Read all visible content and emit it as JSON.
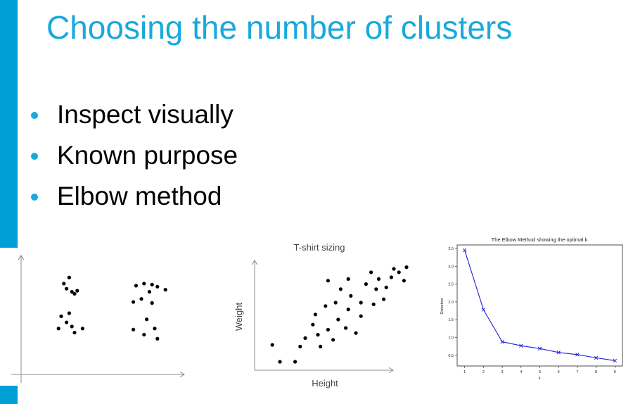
{
  "slide": {
    "title": "Choosing the number of clusters",
    "bullets": [
      "Inspect visually",
      "Known purpose",
      "Elbow method"
    ]
  },
  "colors": {
    "accent": "#009fd6",
    "title": "#19a9dc",
    "bullet": "#19a9dc",
    "axis": "#8c8c8c",
    "elbow_line": "#1f1fd9"
  },
  "chart_data": [
    {
      "type": "scatter",
      "title": "",
      "xlabel": "",
      "ylabel": "",
      "grid": false,
      "points": [
        [
          1.6,
          8.9
        ],
        [
          1.8,
          9.5
        ],
        [
          1.9,
          8.1
        ],
        [
          1.7,
          8.4
        ],
        [
          2.0,
          7.9
        ],
        [
          2.1,
          8.2
        ],
        [
          1.5,
          5.7
        ],
        [
          1.7,
          5.1
        ],
        [
          1.8,
          6.0
        ],
        [
          1.4,
          4.5
        ],
        [
          1.9,
          4.7
        ],
        [
          2.0,
          4.1
        ],
        [
          2.3,
          4.5
        ],
        [
          4.3,
          8.7
        ],
        [
          4.6,
          8.9
        ],
        [
          4.8,
          8.1
        ],
        [
          4.9,
          8.8
        ],
        [
          5.1,
          8.6
        ],
        [
          5.4,
          8.3
        ],
        [
          4.2,
          7.1
        ],
        [
          4.5,
          7.4
        ],
        [
          4.9,
          7.0
        ],
        [
          4.7,
          5.4
        ],
        [
          4.2,
          4.4
        ],
        [
          5.0,
          4.5
        ],
        [
          4.6,
          3.9
        ],
        [
          5.1,
          3.5
        ]
      ]
    },
    {
      "type": "scatter",
      "title": "T-shirt sizing",
      "xlabel": "Height",
      "ylabel": "Weight",
      "grid": false,
      "points": [
        [
          0.7,
          1.5
        ],
        [
          1.0,
          0.5
        ],
        [
          1.6,
          0.5
        ],
        [
          1.8,
          1.4
        ],
        [
          2.0,
          1.9
        ],
        [
          2.3,
          2.7
        ],
        [
          2.5,
          2.1
        ],
        [
          2.4,
          3.3
        ],
        [
          2.6,
          1.4
        ],
        [
          2.9,
          2.4
        ],
        [
          2.8,
          3.8
        ],
        [
          3.1,
          1.8
        ],
        [
          3.3,
          3.0
        ],
        [
          2.9,
          5.3
        ],
        [
          3.2,
          4.0
        ],
        [
          3.4,
          4.8
        ],
        [
          3.6,
          2.5
        ],
        [
          3.7,
          3.6
        ],
        [
          3.8,
          4.4
        ],
        [
          4.0,
          2.2
        ],
        [
          4.2,
          3.2
        ],
        [
          4.4,
          5.1
        ],
        [
          4.2,
          4.0
        ],
        [
          4.7,
          3.9
        ],
        [
          4.8,
          4.8
        ],
        [
          4.6,
          5.8
        ],
        [
          5.1,
          4.2
        ],
        [
          5.4,
          5.5
        ],
        [
          5.2,
          4.9
        ],
        [
          5.5,
          6.0
        ],
        [
          5.9,
          5.3
        ],
        [
          6.0,
          6.1
        ],
        [
          5.7,
          5.8
        ],
        [
          3.7,
          5.4
        ],
        [
          4.9,
          5.4
        ]
      ]
    },
    {
      "type": "line",
      "title": "The Elbow Method showing the optimal k",
      "xlabel": "k",
      "ylabel": "Distortion",
      "x": [
        1,
        2,
        3,
        4,
        5,
        6,
        7,
        8,
        9
      ],
      "y": [
        3.45,
        1.78,
        0.88,
        0.77,
        0.69,
        0.58,
        0.52,
        0.43,
        0.35
      ],
      "xlim": [
        0.6,
        9.4
      ],
      "ylim": [
        0.2,
        3.6
      ],
      "xticks": [
        "1",
        "2",
        "3",
        "4",
        "5",
        "6",
        "7",
        "8",
        "9"
      ],
      "yticks": [
        "0.5",
        "1.0",
        "1.5",
        "2.0",
        "2.5",
        "3.0",
        "3.5"
      ],
      "marker": "x",
      "grid": false
    }
  ]
}
